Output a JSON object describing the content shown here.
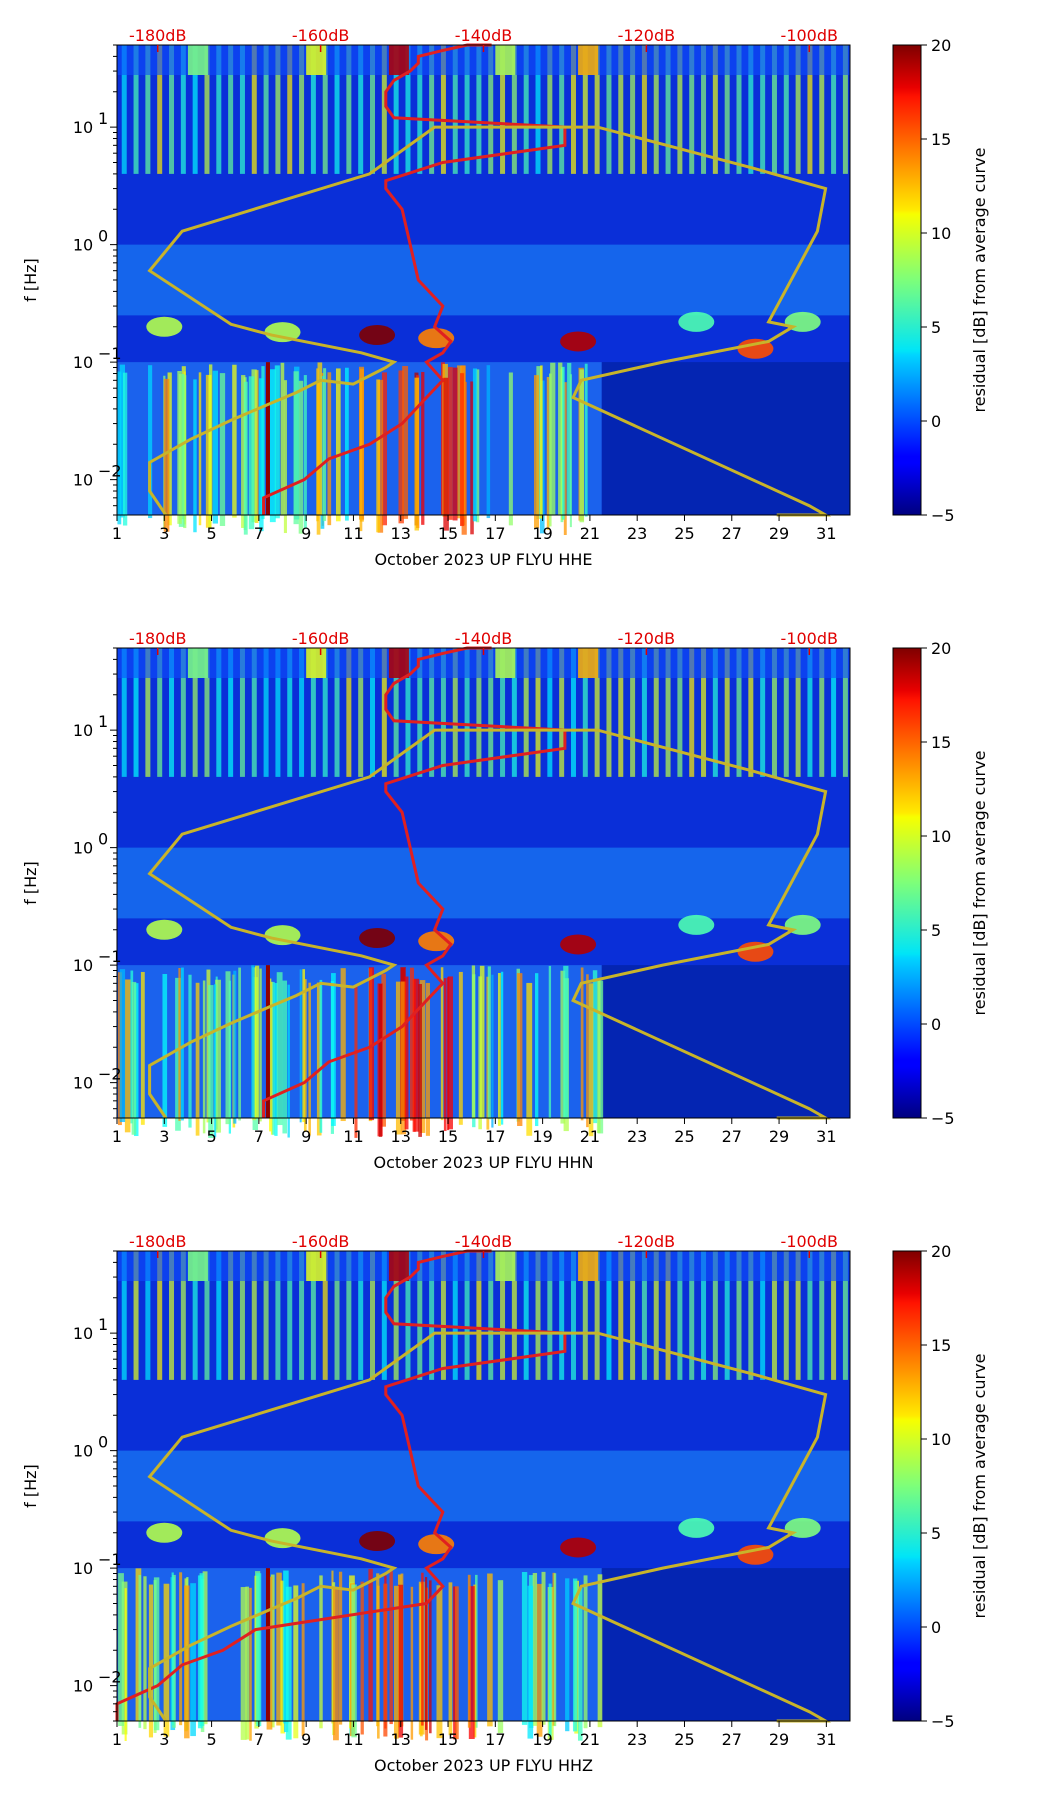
{
  "chart_data": [
    {
      "type": "heatmap",
      "station": "UP FLYU",
      "channel": "HHE",
      "xlabel": "October 2023 UP FLYU  HHE",
      "ylabel": "f [Hz]",
      "x_ticks": [
        "1",
        "3",
        "5",
        "7",
        "9",
        "11",
        "13",
        "15",
        "17",
        "19",
        "21",
        "23",
        "25",
        "27",
        "29",
        "31"
      ],
      "y_ticks": [
        "10^-2",
        "10^-1",
        "10^0",
        "10^1"
      ],
      "xlim": [
        1,
        32
      ],
      "ylim_hz": [
        0.005,
        50
      ],
      "y_scale": "log",
      "db_axis_labels": [
        "-180dB",
        "-160dB",
        "-140dB",
        "-120dB",
        "-100dB"
      ],
      "colorbar": {
        "label": "residual [dB] from average curve",
        "ticks": [
          "20",
          "15",
          "10",
          "5",
          "0",
          "−5"
        ],
        "range": [
          -5,
          20
        ],
        "colormap": "jet"
      },
      "red_curve_db": [
        -167,
        -167,
        -162,
        -159,
        -154,
        -150,
        -147,
        -145,
        -147,
        -145,
        -144,
        -146,
        -145,
        -148,
        -149,
        -150,
        -152,
        -152,
        -145,
        -130,
        -130,
        -151,
        -152,
        -152,
        -151,
        -149,
        -148,
        -148,
        -145,
        -142,
        -139
      ],
      "red_curve_hz": [
        0.005,
        0.007,
        0.01,
        0.015,
        0.02,
        0.03,
        0.05,
        0.07,
        0.1,
        0.12,
        0.15,
        0.2,
        0.3,
        0.5,
        1,
        2,
        3,
        3.5,
        5,
        7,
        10,
        12,
        15,
        20,
        25,
        30,
        35,
        40,
        45,
        50,
        50
      ],
      "yellow_curve_db": [
        -179,
        -181,
        -181,
        -176,
        -171,
        -166,
        -163,
        -160,
        -156,
        -152,
        -151,
        -155,
        -166,
        -171,
        -181,
        -177,
        -154,
        -146,
        -126,
        -107,
        -98,
        -99,
        -105,
        -102,
        -105,
        -118,
        -128,
        -129,
        -100,
        -98,
        -102,
        -104
      ],
      "yellow_curve_hz": [
        0.005,
        0.008,
        0.014,
        0.022,
        0.032,
        0.045,
        0.055,
        0.07,
        0.065,
        0.09,
        0.1,
        0.12,
        0.17,
        0.21,
        0.6,
        1.3,
        4,
        10,
        10,
        4.5,
        3,
        1.3,
        0.22,
        0.2,
        0.15,
        0.1,
        0.07,
        0.05,
        0.006,
        0.005,
        0.005,
        0.005
      ],
      "dB_range": [
        -185,
        -95
      ]
    },
    {
      "type": "heatmap",
      "station": "UP FLYU",
      "channel": "HHN",
      "xlabel": "October 2023 UP FLYU  HHN",
      "ylabel": "f [Hz]",
      "x_ticks": [
        "1",
        "3",
        "5",
        "7",
        "9",
        "11",
        "13",
        "15",
        "17",
        "19",
        "21",
        "23",
        "25",
        "27",
        "29",
        "31"
      ],
      "y_ticks": [
        "10^-2",
        "10^-1",
        "10^0",
        "10^1"
      ],
      "xlim": [
        1,
        32
      ],
      "ylim_hz": [
        0.005,
        50
      ],
      "y_scale": "log",
      "db_axis_labels": [
        "-180dB",
        "-160dB",
        "-140dB",
        "-120dB",
        "-100dB"
      ],
      "colorbar": {
        "label": "residual [dB] from average curve",
        "ticks": [
          "20",
          "15",
          "10",
          "5",
          "0",
          "−5"
        ],
        "range": [
          -5,
          20
        ],
        "colormap": "jet"
      },
      "dB_range": [
        -185,
        -95
      ]
    },
    {
      "type": "heatmap",
      "station": "UP FLYU",
      "channel": "HHZ",
      "xlabel": "October 2023 UP FLYU  HHZ",
      "ylabel": "f [Hz]",
      "x_ticks": [
        "1",
        "3",
        "5",
        "7",
        "9",
        "11",
        "13",
        "15",
        "17",
        "19",
        "21",
        "23",
        "25",
        "27",
        "29",
        "31"
      ],
      "y_ticks": [
        "10^-2",
        "10^-1",
        "10^0",
        "10^1"
      ],
      "xlim": [
        1,
        32
      ],
      "ylim_hz": [
        0.005,
        50
      ],
      "y_scale": "log",
      "db_axis_labels": [
        "-180dB",
        "-160dB",
        "-140dB",
        "-120dB",
        "-100dB"
      ],
      "colorbar": {
        "label": "residual [dB] from average curve",
        "ticks": [
          "20",
          "15",
          "10",
          "5",
          "0",
          "−5"
        ],
        "range": [
          -5,
          20
        ],
        "colormap": "jet"
      },
      "dB_range": [
        -185,
        -95
      ]
    }
  ]
}
